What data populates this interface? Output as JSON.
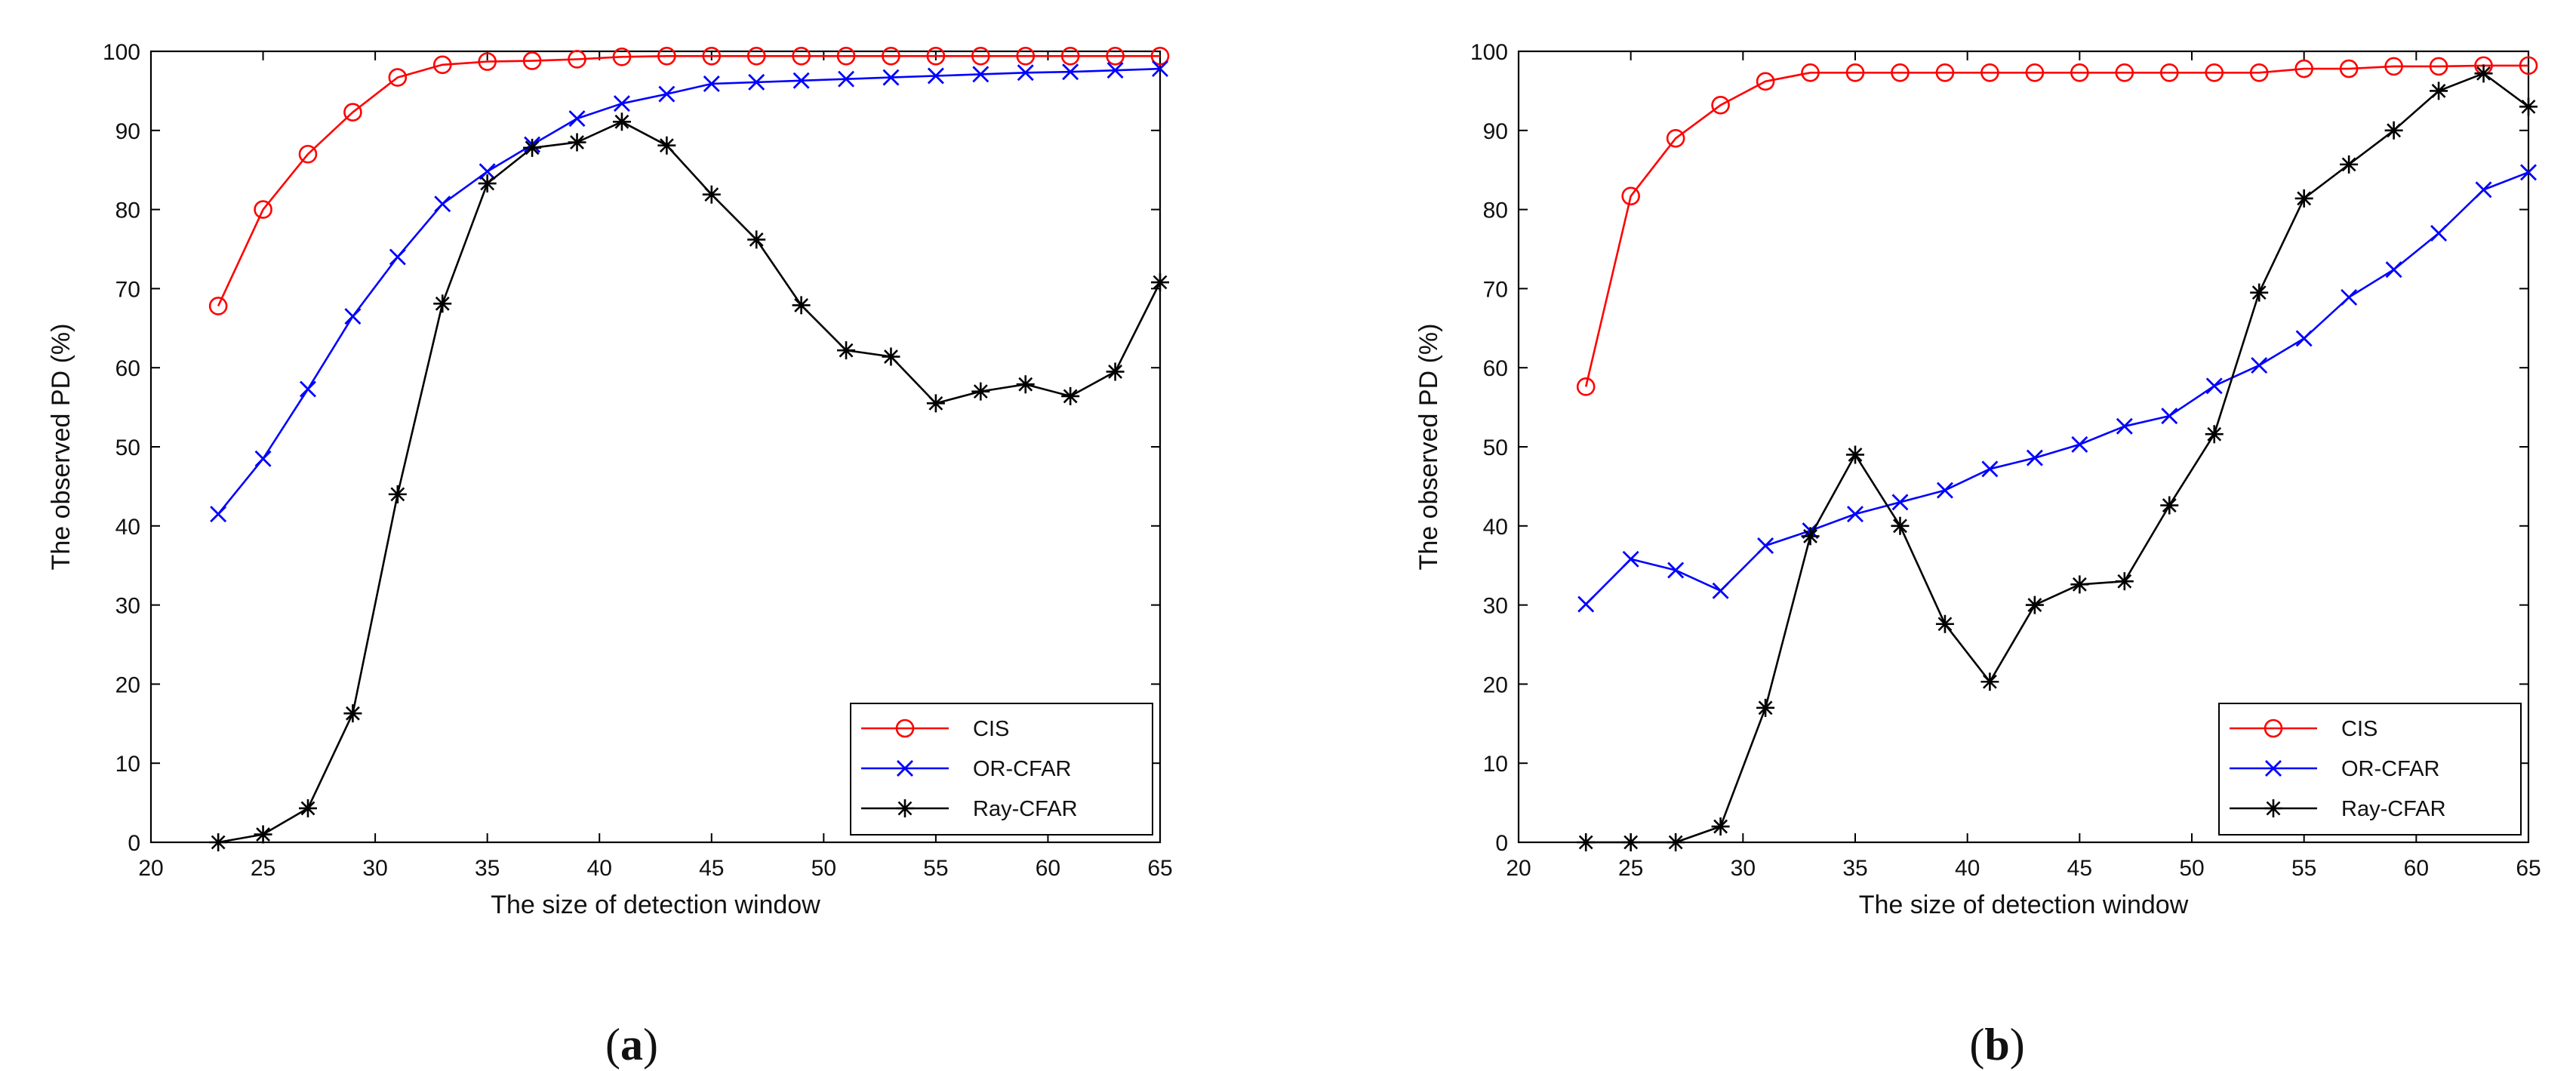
{
  "chart_data": [
    {
      "type": "line",
      "caption_letter": "a",
      "caption": "(a)",
      "xlabel": "The size of detection window",
      "ylabel": "The observed PD (%)",
      "xlim": [
        20,
        65
      ],
      "ylim": [
        0,
        100
      ],
      "xticks": [
        20,
        25,
        30,
        35,
        40,
        45,
        50,
        55,
        60,
        65
      ],
      "yticks": [
        0,
        10,
        20,
        30,
        40,
        50,
        60,
        70,
        80,
        90,
        100
      ],
      "grid": false,
      "legend_position": "bottom-right",
      "x": [
        23,
        25,
        27,
        29,
        31,
        33,
        35,
        37,
        39,
        41,
        43,
        45,
        47,
        49,
        51,
        53,
        55,
        57,
        59,
        61,
        63,
        65
      ],
      "series": [
        {
          "name": "CIS",
          "color": "#ff0000",
          "marker": "circle",
          "values": [
            67.8,
            80,
            87,
            92.3,
            96.7,
            98.3,
            98.7,
            98.8,
            99,
            99.3,
            99.4,
            99.4,
            99.4,
            99.4,
            99.4,
            99.4,
            99.4,
            99.4,
            99.4,
            99.4,
            99.4,
            99.4
          ]
        },
        {
          "name": "OR-CFAR",
          "color": "#0000ff",
          "marker": "x",
          "values": [
            41.5,
            48.5,
            57.3,
            66.5,
            74,
            80.7,
            84.8,
            88.2,
            91.5,
            93.4,
            94.6,
            95.9,
            96.1,
            96.3,
            96.5,
            96.7,
            96.9,
            97.1,
            97.3,
            97.4,
            97.6,
            97.8
          ]
        },
        {
          "name": "Ray-CFAR",
          "color": "#000000",
          "marker": "asterisk",
          "values": [
            0,
            1,
            4.3,
            16.3,
            44,
            68.1,
            83.3,
            87.8,
            88.5,
            91.1,
            88.1,
            81.9,
            76.2,
            67.9,
            62.2,
            61.4,
            55.5,
            57,
            57.9,
            56.4,
            59.5,
            70.8
          ]
        }
      ]
    },
    {
      "type": "line",
      "caption_letter": "b",
      "caption": "(b)",
      "xlabel": "The size of detection window",
      "ylabel": "The observed PD (%)",
      "xlim": [
        20,
        65
      ],
      "ylim": [
        0,
        100
      ],
      "xticks": [
        20,
        25,
        30,
        35,
        40,
        45,
        50,
        55,
        60,
        65
      ],
      "yticks": [
        0,
        10,
        20,
        30,
        40,
        50,
        60,
        70,
        80,
        90,
        100
      ],
      "grid": false,
      "legend_position": "bottom-right",
      "x": [
        23,
        25,
        27,
        29,
        31,
        33,
        35,
        37,
        39,
        41,
        43,
        45,
        47,
        49,
        51,
        53,
        55,
        57,
        59,
        61,
        63,
        65
      ],
      "series": [
        {
          "name": "CIS",
          "color": "#ff0000",
          "marker": "circle",
          "values": [
            57.6,
            81.7,
            89,
            93.2,
            96.2,
            97.3,
            97.3,
            97.3,
            97.3,
            97.3,
            97.3,
            97.3,
            97.3,
            97.3,
            97.3,
            97.3,
            97.8,
            97.8,
            98.1,
            98.1,
            98.2,
            98.2
          ]
        },
        {
          "name": "OR-CFAR",
          "color": "#0000ff",
          "marker": "x",
          "values": [
            30.1,
            35.8,
            34.4,
            31.8,
            37.5,
            39.4,
            41.5,
            43,
            44.5,
            47.2,
            48.6,
            50.3,
            52.6,
            53.9,
            57.7,
            60.3,
            63.7,
            68.9,
            72.4,
            77,
            82.5,
            84.7
          ]
        },
        {
          "name": "Ray-CFAR",
          "color": "#000000",
          "marker": "asterisk",
          "values": [
            0,
            0,
            0,
            2,
            17,
            38.7,
            49,
            40,
            27.6,
            20.3,
            30,
            32.6,
            33,
            42.6,
            51.6,
            69.5,
            81.4,
            85.7,
            90,
            95,
            97.2,
            93
          ]
        }
      ]
    }
  ]
}
